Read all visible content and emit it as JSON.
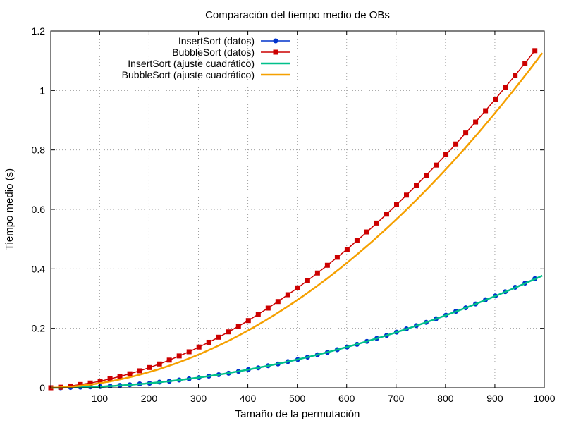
{
  "chart_data": {
    "type": "line",
    "title": "Comparación del tiempo medio de OBs",
    "xlabel": "Tamaño de la permutación",
    "ylabel": "Tiempo medio (s)",
    "xlim": [
      1,
      1000
    ],
    "ylim": [
      0,
      1.2
    ],
    "xticks": [
      100,
      200,
      300,
      400,
      500,
      600,
      700,
      800,
      900,
      1000
    ],
    "yticks": [
      0,
      0.2,
      0.4,
      0.6,
      0.8,
      1,
      1.2
    ],
    "ytick_labels": [
      "0",
      "0.2",
      "0.4",
      "0.6",
      "0.8",
      "1",
      "1.2"
    ],
    "grid": true,
    "legend_position": "top-left",
    "x": [
      1,
      21,
      41,
      61,
      81,
      101,
      121,
      141,
      161,
      181,
      201,
      221,
      241,
      261,
      281,
      301,
      321,
      341,
      361,
      381,
      401,
      421,
      441,
      461,
      481,
      501,
      521,
      541,
      561,
      581,
      601,
      621,
      641,
      661,
      681,
      701,
      721,
      741,
      761,
      781,
      801,
      821,
      841,
      861,
      881,
      901,
      921,
      941,
      961,
      981
    ],
    "series": [
      {
        "name": "InsertSort (datos)",
        "kind": "data",
        "marker": "circle",
        "color": "#0033cc",
        "values": [
          0.0,
          0.0,
          0.001,
          0.002,
          0.003,
          0.004,
          0.006,
          0.008,
          0.01,
          0.013,
          0.015,
          0.019,
          0.022,
          0.026,
          0.03,
          0.034,
          0.039,
          0.044,
          0.049,
          0.055,
          0.061,
          0.067,
          0.074,
          0.08,
          0.088,
          0.095,
          0.103,
          0.111,
          0.119,
          0.128,
          0.137,
          0.146,
          0.156,
          0.166,
          0.176,
          0.187,
          0.198,
          0.209,
          0.22,
          0.232,
          0.244,
          0.257,
          0.269,
          0.282,
          0.296,
          0.309,
          0.323,
          0.338,
          0.352,
          0.367
        ]
      },
      {
        "name": "BubbleSort (datos)",
        "kind": "data",
        "marker": "square",
        "color": "#cc0000",
        "values": [
          0.0,
          0.002,
          0.006,
          0.011,
          0.016,
          0.022,
          0.03,
          0.038,
          0.047,
          0.057,
          0.068,
          0.08,
          0.093,
          0.107,
          0.121,
          0.137,
          0.153,
          0.17,
          0.188,
          0.207,
          0.226,
          0.247,
          0.268,
          0.29,
          0.313,
          0.336,
          0.361,
          0.386,
          0.412,
          0.439,
          0.466,
          0.495,
          0.524,
          0.554,
          0.584,
          0.616,
          0.648,
          0.681,
          0.715,
          0.749,
          0.784,
          0.82,
          0.857,
          0.894,
          0.932,
          0.971,
          1.011,
          1.051,
          1.092,
          1.134
        ]
      },
      {
        "name": "InsertSort (ajuste cuadrático)",
        "kind": "fit",
        "color": "#00c08a",
        "coeffs": [
          3.8e-07,
          0.0,
          0.0
        ]
      },
      {
        "name": "BubbleSort (ajuste cuadrático)",
        "kind": "fit",
        "color": "#f5a000",
        "coeffs": [
          1.09e-06,
          4.5e-05,
          0.0
        ]
      }
    ]
  }
}
